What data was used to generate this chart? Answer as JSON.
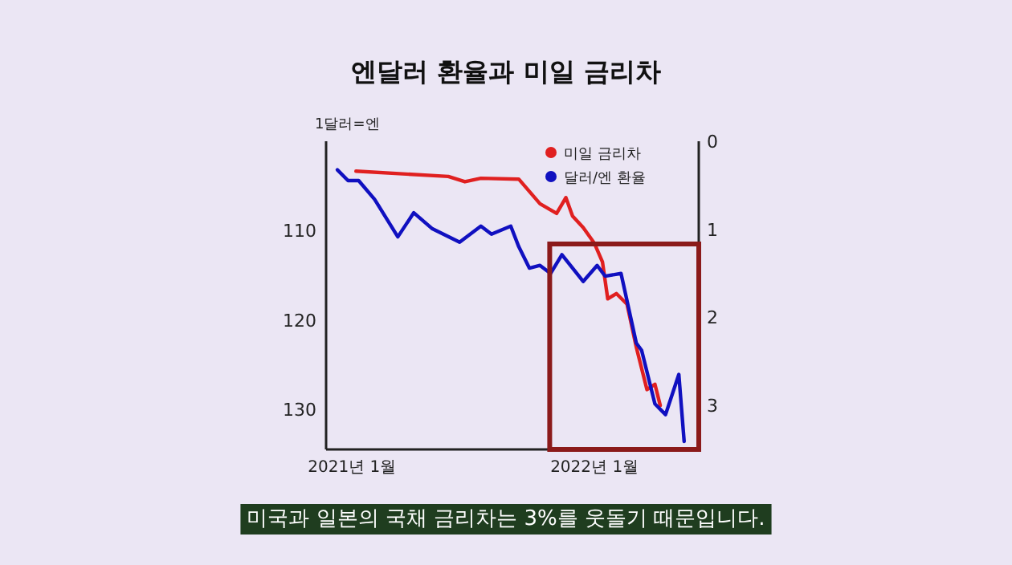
{
  "chart_data": {
    "type": "line",
    "title": "엔달러 환율과 미일 금리차",
    "ylabel": "1달러=엔",
    "xlim": [
      "2020-11-23",
      "2022-06-07"
    ],
    "xticks": [
      {
        "value": "2021-01-01",
        "label": "2021년 1월"
      },
      {
        "value": "2022-01-01",
        "label": "2022년 1월"
      }
    ],
    "ylim": [
      134.5,
      100
    ],
    "yticks": [
      110,
      120,
      130
    ],
    "y2lim": [
      3.5,
      0
    ],
    "y2ticks": [
      0,
      1,
      2,
      3
    ],
    "series": [
      {
        "name": "미일 금리차",
        "color": "#e02020",
        "axis": "y2",
        "x": [
          "2021-01-07",
          "2021-05-26",
          "2021-06-20",
          "2021-07-14",
          "2021-09-09",
          "2021-10-11",
          "2021-11-05",
          "2021-11-19",
          "2021-11-29",
          "2021-12-15",
          "2022-01-01",
          "2022-01-13",
          "2022-01-21",
          "2022-02-03",
          "2022-02-19",
          "2022-03-05",
          "2022-03-21",
          "2022-04-02",
          "2022-04-10"
        ],
        "values": [
          0.34,
          0.4,
          0.46,
          0.42,
          0.43,
          0.71,
          0.82,
          0.64,
          0.85,
          0.98,
          1.16,
          1.37,
          1.79,
          1.73,
          1.85,
          2.34,
          2.82,
          2.76,
          3.0
        ]
      },
      {
        "name": "달러/엔 환율",
        "color": "#1010c0",
        "x": [
          "2020-12-10",
          "2020-12-26",
          "2021-01-11",
          "2021-02-04",
          "2021-03-11",
          "2021-04-04",
          "2021-05-02",
          "2021-06-12",
          "2021-07-14",
          "2021-07-30",
          "2021-08-28",
          "2021-09-09",
          "2021-09-25",
          "2021-10-11",
          "2021-10-27",
          "2021-11-13",
          "2021-12-15",
          "2022-01-05",
          "2022-01-17",
          "2022-02-10",
          "2022-03-05",
          "2022-03-13",
          "2022-04-02",
          "2022-04-18",
          "2022-05-08",
          "2022-05-16"
        ],
        "values": [
          103.2,
          104.4,
          104.4,
          106.5,
          110.7,
          108.0,
          109.8,
          111.3,
          109.5,
          110.4,
          109.5,
          111.8,
          114.2,
          113.9,
          114.8,
          112.7,
          115.7,
          113.9,
          115.1,
          114.8,
          122.6,
          123.4,
          129.4,
          130.6,
          126.1,
          133.6
        ]
      }
    ],
    "legend": "top right",
    "marker": "none",
    "line_style": "solid",
    "grid": false,
    "annotations": [
      "미국과 일본의 국채 금리차는 3%를 웃돌기 때문입니다."
    ]
  }
}
